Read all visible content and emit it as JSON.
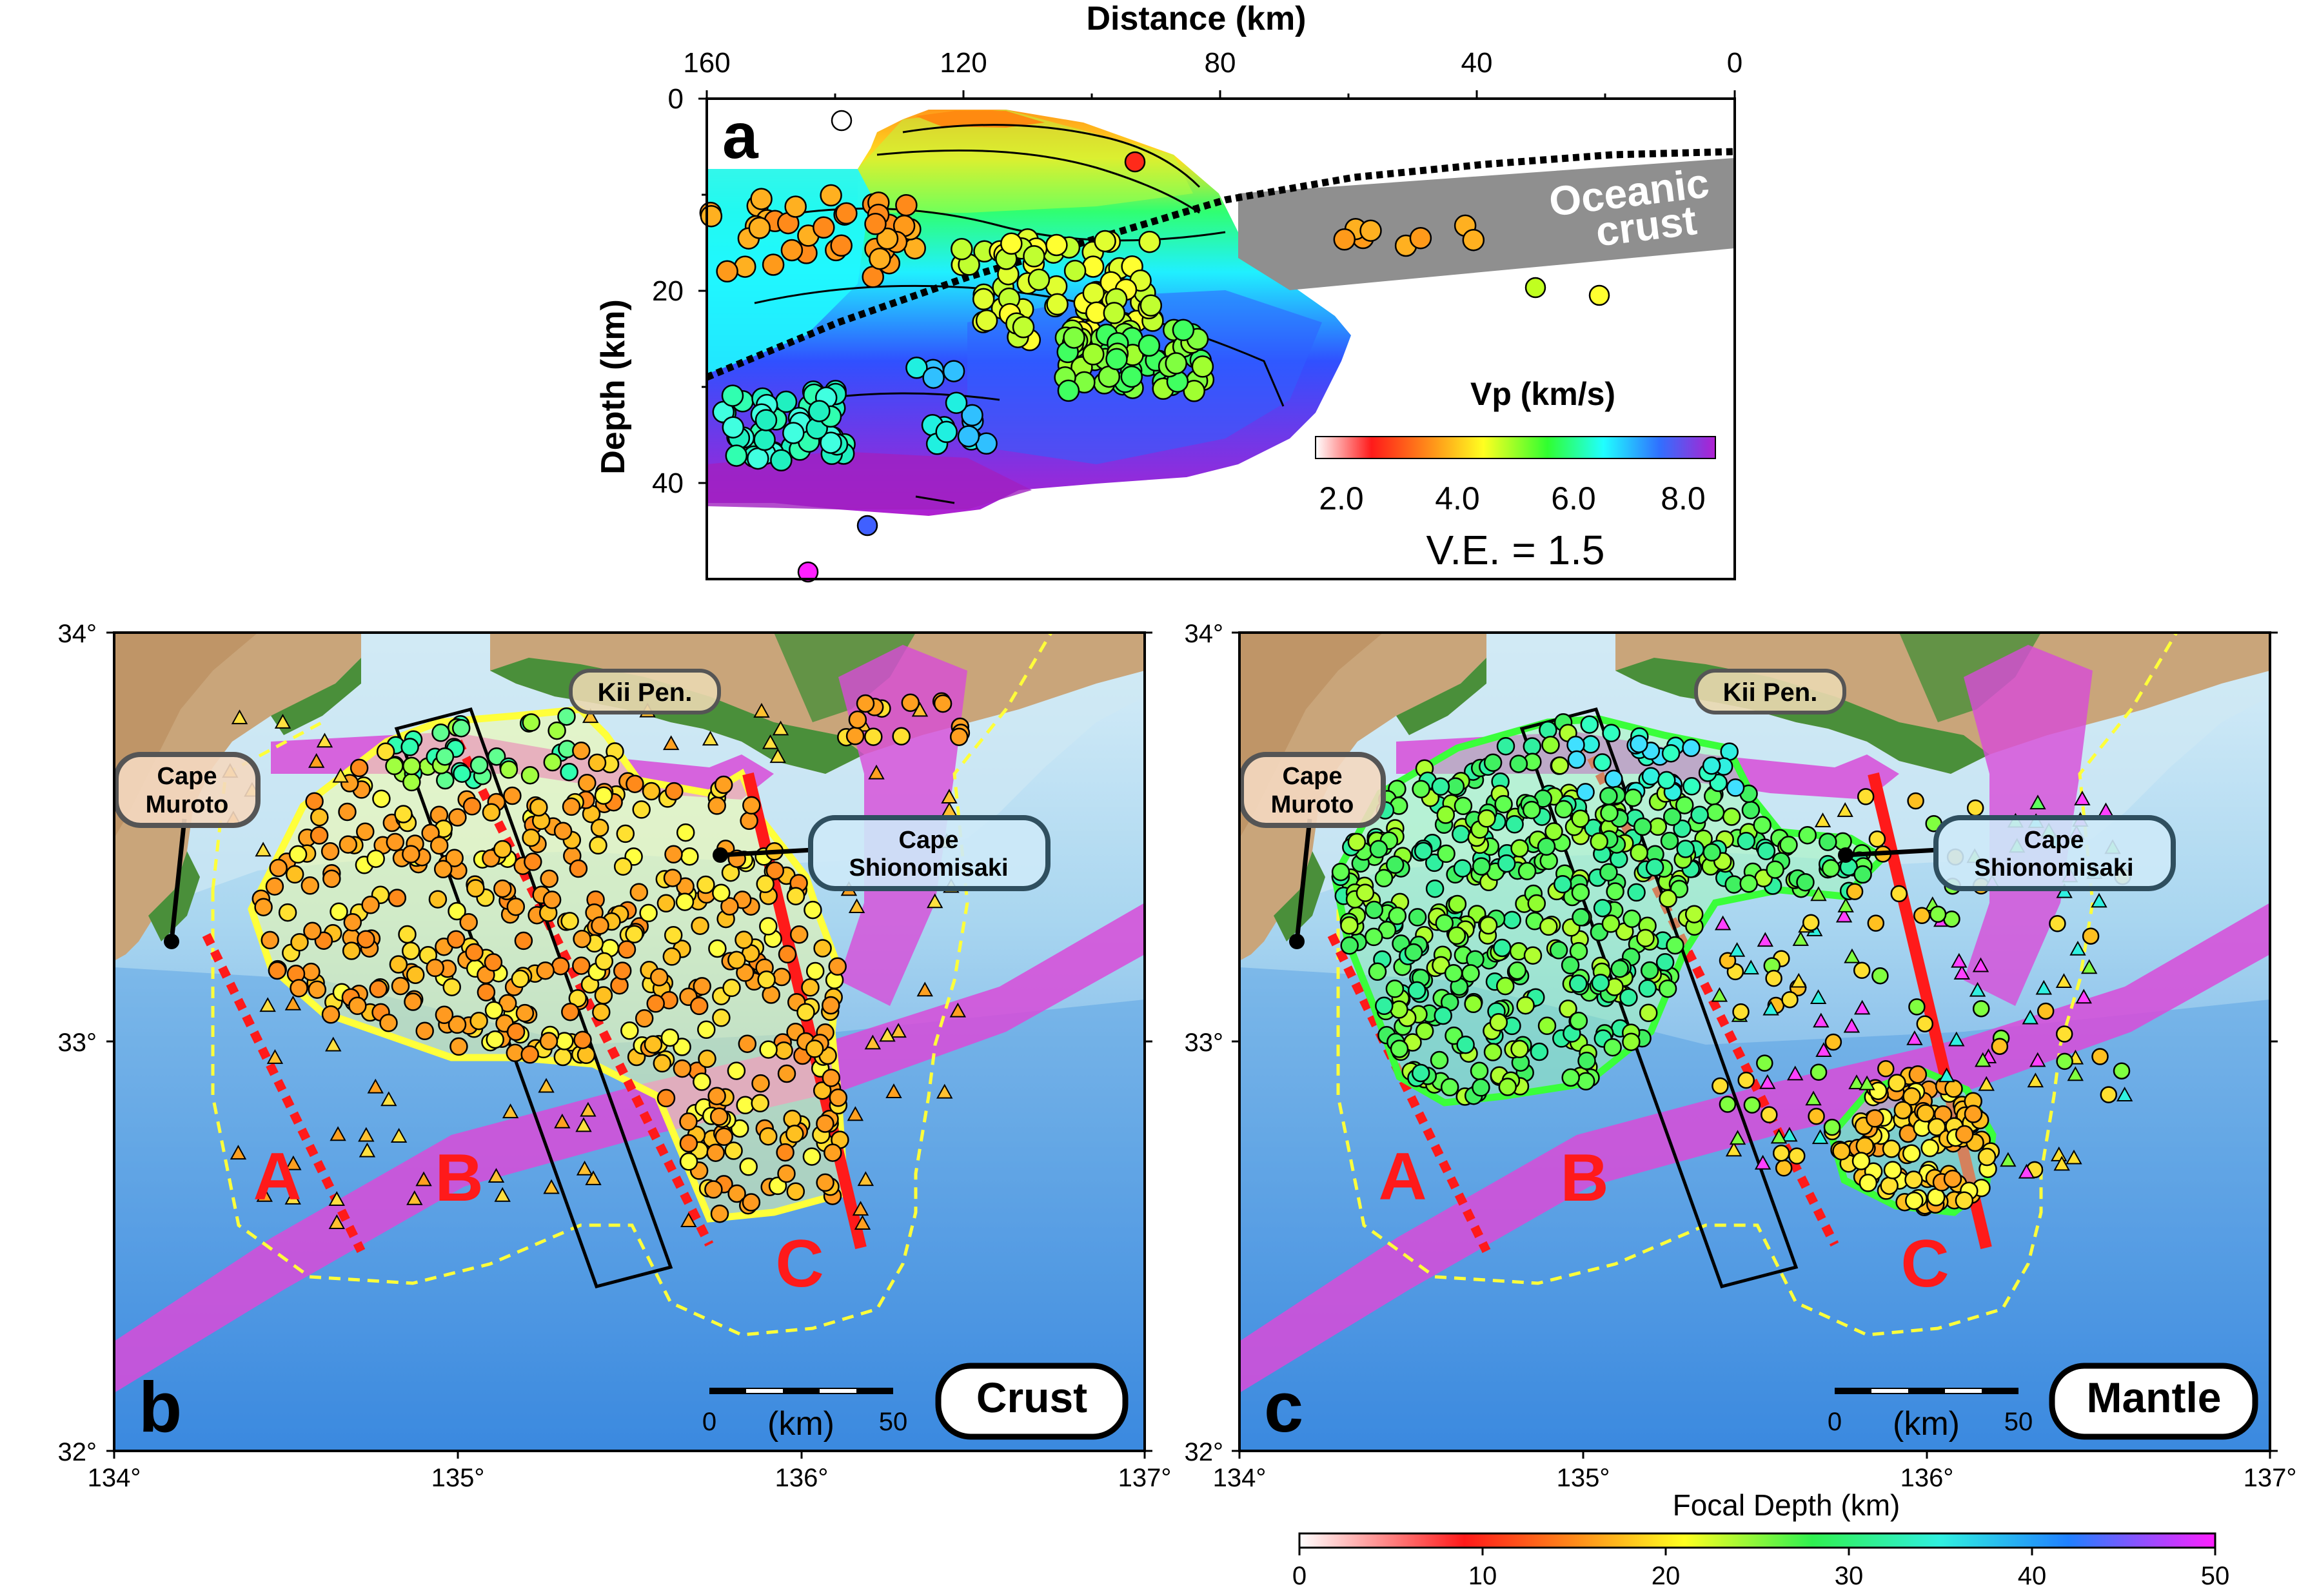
{
  "panel_a": {
    "letter": "a",
    "x_axis_title": "Distance (km)",
    "x_ticks": [
      "160",
      "120",
      "80",
      "40",
      "0"
    ],
    "y_axis_title": "Depth (km)",
    "y_ticks": [
      "0",
      "20",
      "40"
    ],
    "oceanic_label_line1": "Oceanic",
    "oceanic_label_line2": "crust",
    "colorbar_title": "Vp (km/s)",
    "colorbar_ticks": [
      "2.0",
      "4.0",
      "6.0",
      "8.0"
    ],
    "vertical_exaggeration": "V.E. = 1.5"
  },
  "panel_b": {
    "letter": "b",
    "badge": "Crust",
    "scale_start": "0",
    "scale_unit": "(km)",
    "scale_end": "50"
  },
  "panel_c": {
    "letter": "c",
    "badge": "Mantle",
    "scale_start": "0",
    "scale_unit": "(km)",
    "scale_end": "50"
  },
  "map_labels": {
    "kii": "Kii Pen.",
    "muroto_line1": "Cape",
    "muroto_line2": "Muroto",
    "shiono_line1": "Cape",
    "shiono_line2": "Shionomisaki",
    "segment_a": "A",
    "segment_b": "B",
    "segment_c": "C"
  },
  "lat_ticks": [
    "34°",
    "33°",
    "32°"
  ],
  "lon_ticks": [
    "134°",
    "135°",
    "136°",
    "137°"
  ],
  "focal_colorbar": {
    "title": "Focal Depth (km)",
    "ticks": [
      "0",
      "10",
      "20",
      "30",
      "40",
      "50"
    ]
  },
  "colors": {
    "land_brown": "#c9a57a",
    "land_green": "#4a8f3a",
    "shallow_sea": "#bfe0f0",
    "deep_sea": "#3d8fe0",
    "plate_magenta": "#d84bd8",
    "segment_red": "#ff1a1a",
    "crust_outline": "#ffff3a",
    "mantle_outline": "#3aff3a"
  }
}
